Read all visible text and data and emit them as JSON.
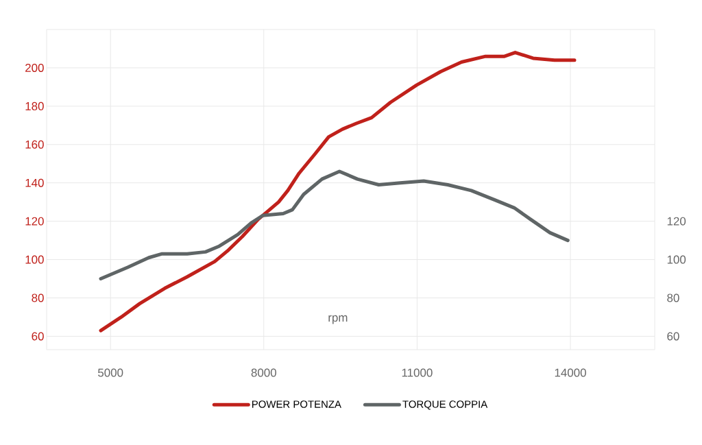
{
  "chart_data": {
    "type": "line",
    "xlabel": "rpm",
    "xlim": [
      3750,
      15650
    ],
    "xticks": [
      5000,
      8000,
      11000,
      14000
    ],
    "ylim": [
      53,
      220
    ],
    "yticks": [
      60,
      80,
      100,
      120,
      140,
      160,
      180,
      200
    ],
    "y2lim": [
      53,
      220
    ],
    "y2ticks": [
      60,
      80,
      100,
      120
    ],
    "grid": true,
    "legend": "bottom",
    "line_style": "solid",
    "series": [
      {
        "name": "POWER POTENZA",
        "color": "#c0211b",
        "x": [
          4810,
          5210,
          5570,
          6060,
          6500,
          7040,
          7310,
          7580,
          7890,
          8070,
          8290,
          8470,
          8690,
          9000,
          9270,
          9540,
          9810,
          10110,
          10480,
          10990,
          11460,
          11870,
          12340,
          12710,
          12920,
          13270,
          13690,
          14080
        ],
        "values": [
          63,
          70,
          77,
          85,
          91,
          99,
          105,
          112,
          121,
          125,
          130,
          136,
          145,
          155,
          164,
          168,
          171,
          174,
          182,
          191,
          198,
          203,
          206,
          206,
          208,
          205,
          204,
          204
        ]
      },
      {
        "name": "TORQUE COPPIA",
        "color": "#5f6566",
        "axis": "y2",
        "x": [
          4810,
          5340,
          5750,
          6010,
          6500,
          6860,
          7130,
          7490,
          7750,
          7980,
          8380,
          8560,
          8780,
          9140,
          9480,
          9830,
          10250,
          10670,
          11130,
          11600,
          12060,
          12530,
          12900,
          13220,
          13600,
          13950
        ],
        "values": [
          90,
          96,
          101,
          103,
          103,
          104,
          107,
          113,
          119,
          123,
          124,
          126,
          134,
          142,
          146,
          142,
          139,
          140,
          141,
          139,
          136,
          131,
          127,
          121,
          114,
          110
        ]
      }
    ]
  }
}
